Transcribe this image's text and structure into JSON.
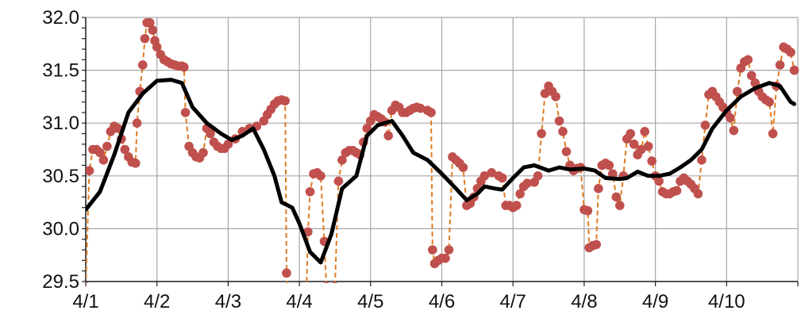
{
  "chart_data": {
    "type": "line",
    "title": "",
    "xlabel": "",
    "ylabel": "",
    "ylim": [
      29.5,
      32.0
    ],
    "y_ticks": [
      "29.5",
      "30.0",
      "30.5",
      "31.0",
      "31.5",
      "32.0"
    ],
    "x_ticks": [
      "4/1",
      "4/2",
      "4/3",
      "4/4",
      "4/5",
      "4/6",
      "4/7",
      "4/8",
      "4/9",
      "4/10"
    ],
    "grid": true,
    "legend": "none",
    "colors": {
      "raw_series": "#c0504d",
      "raw_line": "#e07b20",
      "smooth_series": "#000000",
      "grid": "#a6a6a6"
    },
    "series": [
      {
        "style": "dots-dashed",
        "points": [
          [
            0.0,
            29.45
          ],
          [
            0.05,
            30.55
          ],
          [
            0.1,
            30.75
          ],
          [
            0.15,
            30.75
          ],
          [
            0.2,
            30.72
          ],
          [
            0.25,
            30.65
          ],
          [
            0.3,
            30.78
          ],
          [
            0.35,
            30.92
          ],
          [
            0.4,
            30.97
          ],
          [
            0.45,
            30.95
          ],
          [
            0.5,
            30.85
          ],
          [
            0.55,
            30.75
          ],
          [
            0.6,
            30.68
          ],
          [
            0.65,
            30.63
          ],
          [
            0.7,
            30.62
          ],
          [
            0.72,
            31.0
          ],
          [
            0.76,
            31.3
          ],
          [
            0.8,
            31.55
          ],
          [
            0.83,
            31.8
          ],
          [
            0.86,
            31.95
          ],
          [
            0.9,
            31.95
          ],
          [
            0.94,
            31.88
          ],
          [
            0.97,
            31.78
          ],
          [
            1.0,
            31.72
          ],
          [
            1.05,
            31.65
          ],
          [
            1.1,
            31.6
          ],
          [
            1.15,
            31.58
          ],
          [
            1.2,
            31.56
          ],
          [
            1.25,
            31.55
          ],
          [
            1.3,
            31.54
          ],
          [
            1.35,
            31.54
          ],
          [
            1.38,
            31.53
          ],
          [
            1.4,
            31.1
          ],
          [
            1.45,
            30.78
          ],
          [
            1.5,
            30.72
          ],
          [
            1.55,
            30.68
          ],
          [
            1.6,
            30.67
          ],
          [
            1.65,
            30.72
          ],
          [
            1.7,
            30.95
          ],
          [
            1.75,
            30.9
          ],
          [
            1.8,
            30.82
          ],
          [
            1.85,
            30.78
          ],
          [
            1.9,
            30.76
          ],
          [
            1.95,
            30.76
          ],
          [
            2.0,
            30.8
          ],
          [
            2.1,
            30.85
          ],
          [
            2.2,
            30.92
          ],
          [
            2.3,
            30.95
          ],
          [
            2.4,
            30.97
          ],
          [
            2.5,
            31.02
          ],
          [
            2.55,
            31.08
          ],
          [
            2.6,
            31.13
          ],
          [
            2.65,
            31.18
          ],
          [
            2.7,
            31.21
          ],
          [
            2.75,
            31.22
          ],
          [
            2.8,
            31.21
          ],
          [
            2.82,
            29.58
          ],
          [
            2.85,
            29.4
          ],
          [
            3.1,
            29.4
          ],
          [
            3.12,
            29.97
          ],
          [
            3.15,
            30.35
          ],
          [
            3.2,
            30.52
          ],
          [
            3.25,
            30.53
          ],
          [
            3.3,
            30.5
          ],
          [
            3.35,
            29.88
          ],
          [
            3.38,
            29.45
          ],
          [
            3.5,
            29.45
          ],
          [
            3.55,
            30.45
          ],
          [
            3.6,
            30.65
          ],
          [
            3.65,
            30.72
          ],
          [
            3.7,
            30.74
          ],
          [
            3.75,
            30.74
          ],
          [
            3.8,
            30.72
          ],
          [
            3.85,
            30.7
          ],
          [
            3.9,
            30.82
          ],
          [
            3.95,
            30.95
          ],
          [
            4.0,
            31.02
          ],
          [
            4.05,
            31.08
          ],
          [
            4.1,
            31.06
          ],
          [
            4.15,
            31.04
          ],
          [
            4.2,
            31.01
          ],
          [
            4.25,
            30.88
          ],
          [
            4.3,
            31.12
          ],
          [
            4.35,
            31.17
          ],
          [
            4.4,
            31.15
          ],
          [
            4.45,
            31.1
          ],
          [
            4.5,
            31.1
          ],
          [
            4.55,
            31.12
          ],
          [
            4.6,
            31.14
          ],
          [
            4.65,
            31.15
          ],
          [
            4.7,
            31.14
          ],
          [
            4.8,
            31.12
          ],
          [
            4.85,
            31.1
          ],
          [
            4.87,
            29.8
          ],
          [
            4.9,
            29.67
          ],
          [
            4.95,
            29.7
          ],
          [
            5.0,
            29.72
          ],
          [
            5.05,
            29.72
          ],
          [
            5.1,
            29.8
          ],
          [
            5.15,
            30.68
          ],
          [
            5.2,
            30.65
          ],
          [
            5.25,
            30.62
          ],
          [
            5.3,
            30.58
          ],
          [
            5.35,
            30.22
          ],
          [
            5.4,
            30.24
          ],
          [
            5.45,
            30.3
          ],
          [
            5.5,
            30.38
          ],
          [
            5.55,
            30.45
          ],
          [
            5.6,
            30.5
          ],
          [
            5.7,
            30.53
          ],
          [
            5.8,
            30.5
          ],
          [
            5.85,
            30.48
          ],
          [
            5.9,
            30.22
          ],
          [
            5.95,
            30.22
          ],
          [
            6.0,
            30.2
          ],
          [
            6.05,
            30.22
          ],
          [
            6.1,
            30.33
          ],
          [
            6.15,
            30.4
          ],
          [
            6.2,
            30.43
          ],
          [
            6.3,
            30.44
          ],
          [
            6.35,
            30.5
          ],
          [
            6.4,
            30.9
          ],
          [
            6.45,
            31.28
          ],
          [
            6.5,
            31.35
          ],
          [
            6.55,
            31.3
          ],
          [
            6.6,
            31.25
          ],
          [
            6.65,
            31.02
          ],
          [
            6.7,
            30.92
          ],
          [
            6.75,
            30.73
          ],
          [
            6.8,
            30.6
          ],
          [
            6.85,
            30.55
          ],
          [
            6.9,
            30.57
          ],
          [
            6.95,
            30.58
          ],
          [
            7.0,
            30.18
          ],
          [
            7.05,
            30.17
          ],
          [
            7.07,
            29.82
          ],
          [
            7.12,
            29.84
          ],
          [
            7.17,
            29.85
          ],
          [
            7.2,
            30.38
          ],
          [
            7.25,
            30.6
          ],
          [
            7.3,
            30.62
          ],
          [
            7.35,
            30.6
          ],
          [
            7.4,
            30.52
          ],
          [
            7.45,
            30.3
          ],
          [
            7.5,
            30.22
          ],
          [
            7.55,
            30.5
          ],
          [
            7.6,
            30.85
          ],
          [
            7.65,
            30.9
          ],
          [
            7.7,
            30.8
          ],
          [
            7.75,
            30.7
          ],
          [
            7.8,
            30.75
          ],
          [
            7.85,
            30.92
          ],
          [
            7.9,
            30.78
          ],
          [
            7.95,
            30.64
          ],
          [
            8.0,
            30.5
          ],
          [
            8.05,
            30.45
          ],
          [
            8.1,
            30.35
          ],
          [
            8.15,
            30.33
          ],
          [
            8.2,
            30.33
          ],
          [
            8.25,
            30.35
          ],
          [
            8.3,
            30.36
          ],
          [
            8.35,
            30.45
          ],
          [
            8.4,
            30.48
          ],
          [
            8.45,
            30.45
          ],
          [
            8.5,
            30.42
          ],
          [
            8.55,
            30.38
          ],
          [
            8.6,
            30.33
          ],
          [
            8.65,
            30.65
          ],
          [
            8.7,
            30.98
          ],
          [
            8.75,
            31.27
          ],
          [
            8.8,
            31.3
          ],
          [
            8.85,
            31.25
          ],
          [
            8.9,
            31.2
          ],
          [
            8.95,
            31.15
          ],
          [
            9.0,
            31.1
          ],
          [
            9.05,
            31.05
          ],
          [
            9.1,
            30.93
          ],
          [
            9.15,
            31.3
          ],
          [
            9.2,
            31.52
          ],
          [
            9.25,
            31.58
          ],
          [
            9.3,
            31.6
          ],
          [
            9.35,
            31.45
          ],
          [
            9.4,
            31.38
          ],
          [
            9.45,
            31.3
          ],
          [
            9.5,
            31.25
          ],
          [
            9.55,
            31.22
          ],
          [
            9.6,
            31.2
          ],
          [
            9.65,
            30.9
          ],
          [
            9.7,
            31.35
          ],
          [
            9.75,
            31.55
          ],
          [
            9.8,
            31.72
          ],
          [
            9.85,
            31.7
          ],
          [
            9.9,
            31.67
          ],
          [
            9.95,
            31.5
          ]
        ]
      },
      {
        "style": "solid",
        "points": [
          [
            0.0,
            30.18
          ],
          [
            0.2,
            30.35
          ],
          [
            0.4,
            30.7
          ],
          [
            0.6,
            31.1
          ],
          [
            0.8,
            31.28
          ],
          [
            1.0,
            31.4
          ],
          [
            1.2,
            31.41
          ],
          [
            1.35,
            31.38
          ],
          [
            1.5,
            31.15
          ],
          [
            1.7,
            31.0
          ],
          [
            1.9,
            30.9
          ],
          [
            2.05,
            30.84
          ],
          [
            2.2,
            30.88
          ],
          [
            2.35,
            30.95
          ],
          [
            2.5,
            30.75
          ],
          [
            2.65,
            30.5
          ],
          [
            2.75,
            30.25
          ],
          [
            2.9,
            30.2
          ],
          [
            3.0,
            30.05
          ],
          [
            3.15,
            29.78
          ],
          [
            3.3,
            29.68
          ],
          [
            3.45,
            29.95
          ],
          [
            3.6,
            30.38
          ],
          [
            3.8,
            30.5
          ],
          [
            3.95,
            30.88
          ],
          [
            4.1,
            30.98
          ],
          [
            4.3,
            31.02
          ],
          [
            4.45,
            30.88
          ],
          [
            4.6,
            30.72
          ],
          [
            4.8,
            30.65
          ],
          [
            5.0,
            30.52
          ],
          [
            5.2,
            30.38
          ],
          [
            5.35,
            30.27
          ],
          [
            5.5,
            30.33
          ],
          [
            5.6,
            30.4
          ],
          [
            5.75,
            30.38
          ],
          [
            5.85,
            30.37
          ],
          [
            6.0,
            30.48
          ],
          [
            6.15,
            30.58
          ],
          [
            6.3,
            30.6
          ],
          [
            6.5,
            30.55
          ],
          [
            6.65,
            30.58
          ],
          [
            6.8,
            30.56
          ],
          [
            7.0,
            30.57
          ],
          [
            7.15,
            30.55
          ],
          [
            7.3,
            30.48
          ],
          [
            7.5,
            30.47
          ],
          [
            7.6,
            30.48
          ],
          [
            7.75,
            30.54
          ],
          [
            7.9,
            30.5
          ],
          [
            8.05,
            30.5
          ],
          [
            8.2,
            30.52
          ],
          [
            8.35,
            30.58
          ],
          [
            8.5,
            30.65
          ],
          [
            8.65,
            30.75
          ],
          [
            8.8,
            30.95
          ],
          [
            9.0,
            31.12
          ],
          [
            9.2,
            31.25
          ],
          [
            9.4,
            31.33
          ],
          [
            9.6,
            31.38
          ],
          [
            9.75,
            31.35
          ],
          [
            9.9,
            31.2
          ],
          [
            9.95,
            31.18
          ]
        ]
      }
    ]
  }
}
